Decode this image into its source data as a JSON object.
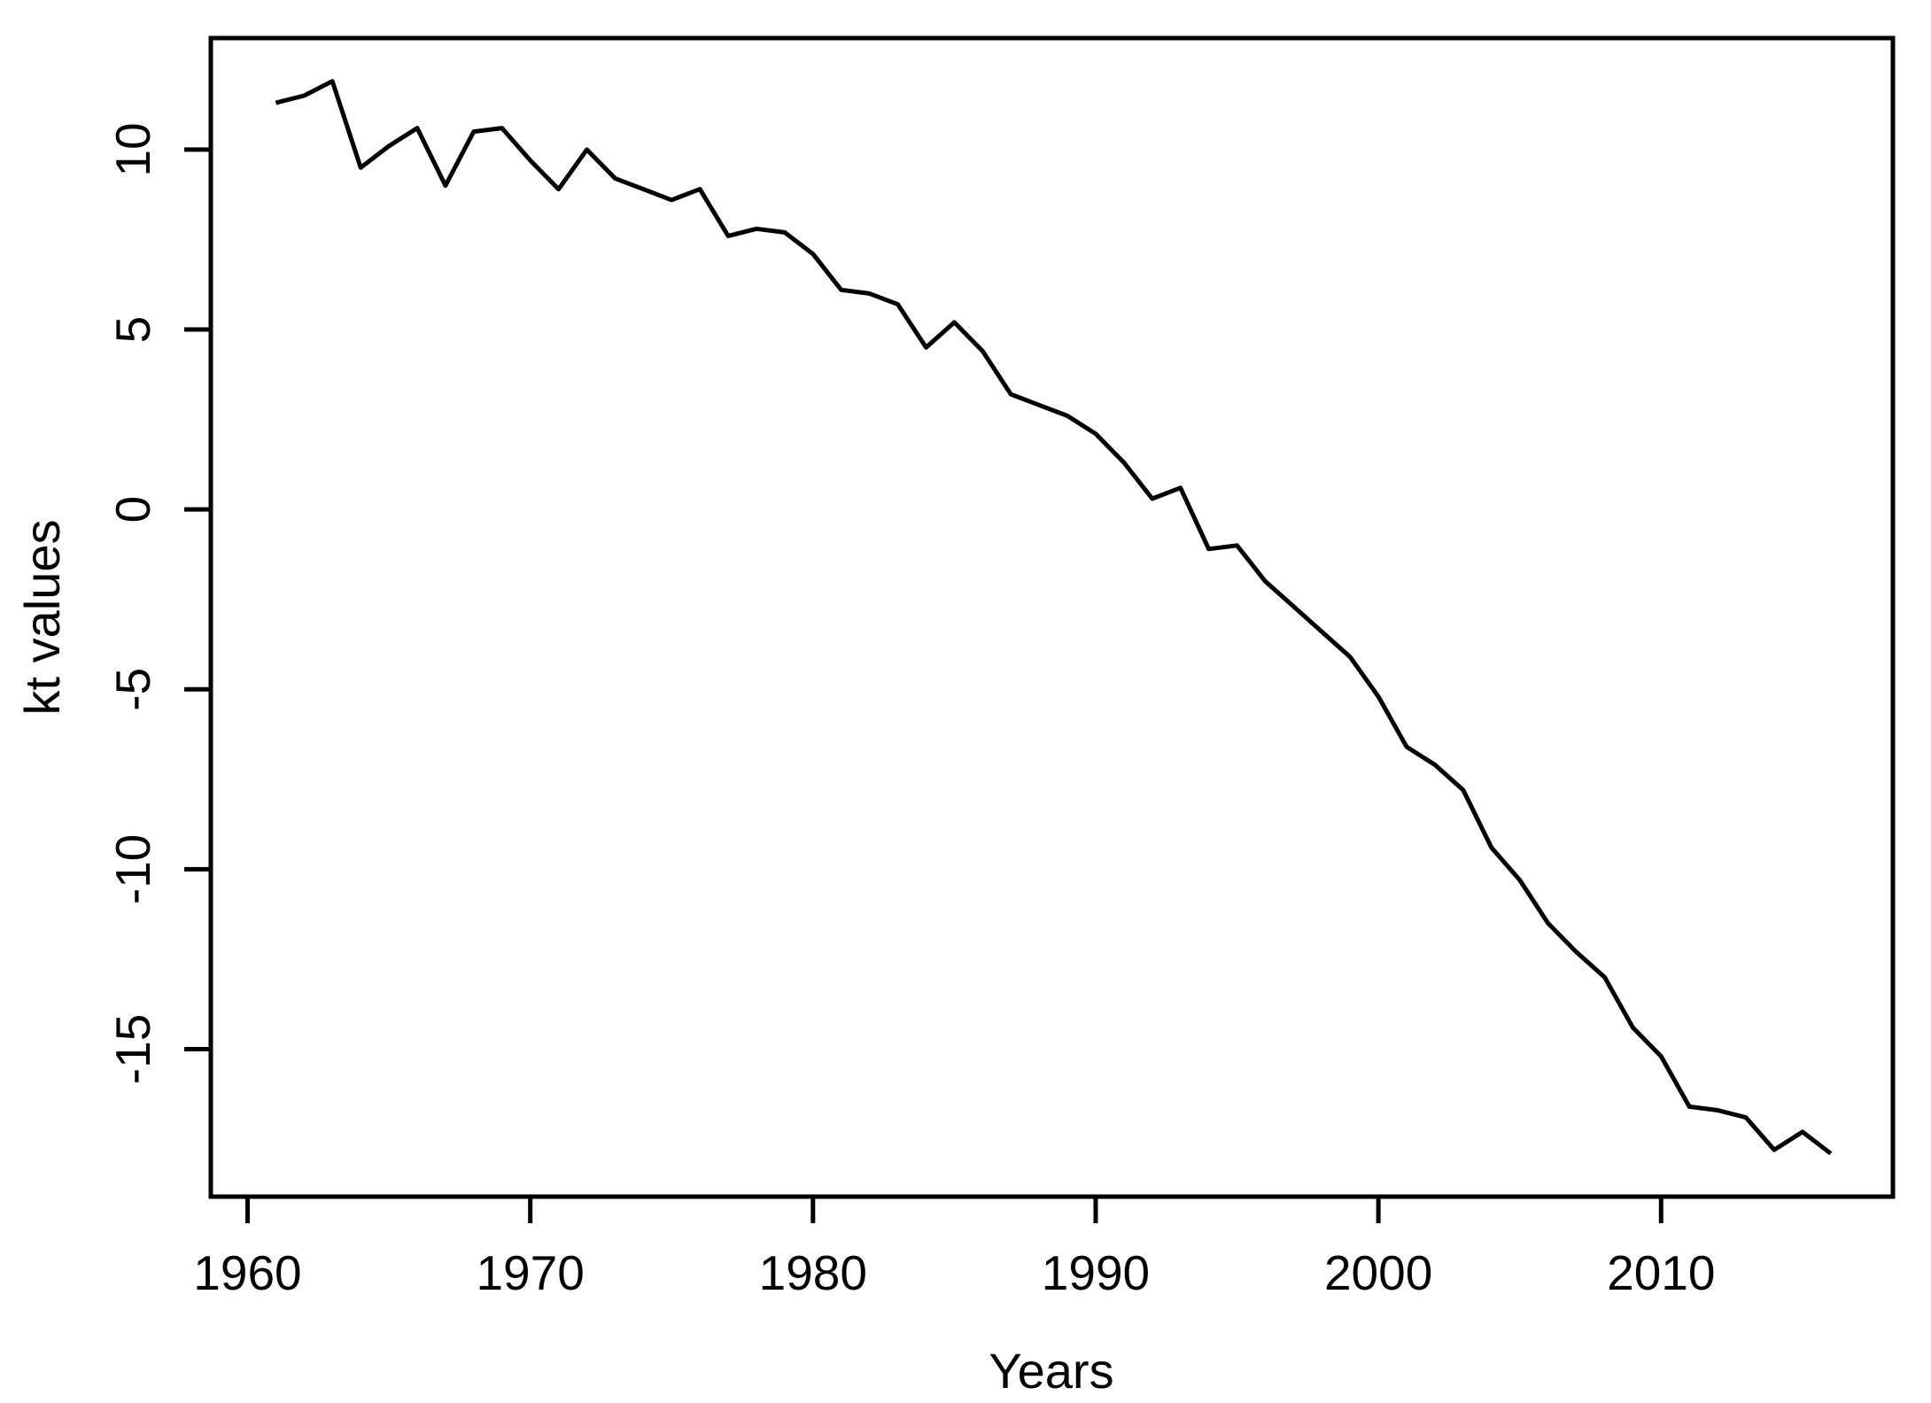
{
  "figure": {
    "background": "#ffffff",
    "xlabel": "Years",
    "ylabel": "kt values"
  },
  "chart_data": {
    "type": "line",
    "title": "",
    "xlabel": "Years",
    "ylabel": "kt values",
    "line_color": "#000000",
    "background": "#ffffff",
    "grid": false,
    "legend": "none",
    "xlim": [
      1958.7,
      2018.2
    ],
    "ylim": [
      -19.1,
      13.1
    ],
    "x_ticks": [
      1960,
      1970,
      1980,
      1990,
      2000,
      2010
    ],
    "y_ticks": [
      10,
      5,
      0,
      -5,
      -10,
      -15
    ],
    "x": [
      1961,
      1962,
      1963,
      1964,
      1965,
      1966,
      1967,
      1968,
      1969,
      1970,
      1971,
      1972,
      1973,
      1974,
      1975,
      1976,
      1977,
      1978,
      1979,
      1980,
      1981,
      1982,
      1983,
      1984,
      1985,
      1986,
      1987,
      1988,
      1989,
      1990,
      1991,
      1992,
      1993,
      1994,
      1995,
      1996,
      1997,
      1998,
      1999,
      2000,
      2001,
      2002,
      2003,
      2004,
      2005,
      2006,
      2007,
      2008,
      2009,
      2010,
      2011,
      2012,
      2013,
      2014,
      2015,
      2016
    ],
    "values": [
      11.3,
      11.5,
      11.9,
      9.5,
      10.1,
      10.6,
      9.0,
      10.5,
      10.6,
      9.7,
      8.9,
      10.0,
      9.2,
      8.9,
      8.6,
      8.9,
      7.6,
      7.8,
      7.7,
      7.1,
      6.1,
      6.0,
      5.7,
      4.5,
      5.2,
      4.4,
      3.2,
      2.9,
      2.6,
      2.1,
      1.3,
      0.3,
      0.6,
      -1.1,
      -1.0,
      -2.0,
      -2.7,
      -3.4,
      -4.1,
      -5.2,
      -6.6,
      -7.1,
      -7.8,
      -9.4,
      -10.3,
      -11.5,
      -12.3,
      -13.0,
      -14.4,
      -15.2,
      -16.6,
      -16.7,
      -16.9,
      -17.8,
      -17.3,
      -17.9
    ]
  }
}
